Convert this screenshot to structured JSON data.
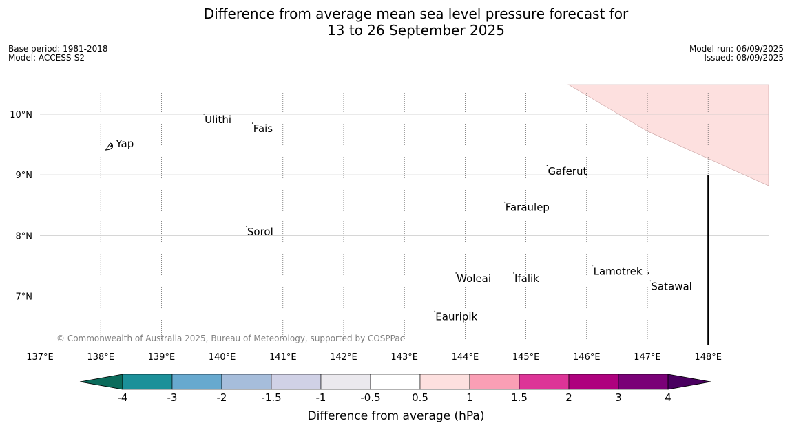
{
  "title": {
    "line1": "Difference from average mean sea level pressure forecast for",
    "line2": "13 to 26 September 2025"
  },
  "meta_left": {
    "base_period": "Base period: 1981-2018",
    "model": "Model: ACCESS-S2"
  },
  "meta_right": {
    "model_run": "Model run: 06/09/2025",
    "issued": "Issued: 08/09/2025"
  },
  "map": {
    "lon_range": [
      137.0,
      148.9
    ],
    "lat_range": [
      6.3,
      10.5
    ],
    "lon_ticks": [
      {
        "value": 137,
        "label": "137°E"
      },
      {
        "value": 138,
        "label": "138°E"
      },
      {
        "value": 139,
        "label": "139°E"
      },
      {
        "value": 140,
        "label": "140°E"
      },
      {
        "value": 141,
        "label": "141°E"
      },
      {
        "value": 142,
        "label": "142°E"
      },
      {
        "value": 143,
        "label": "143°E"
      },
      {
        "value": 144,
        "label": "144°E"
      },
      {
        "value": 145,
        "label": "145°E"
      },
      {
        "value": 146,
        "label": "146°E"
      },
      {
        "value": 147,
        "label": "147°E"
      },
      {
        "value": 148,
        "label": "148°E"
      }
    ],
    "lat_ticks": [
      {
        "value": 10,
        "label": "10°N"
      },
      {
        "value": 9,
        "label": "9°N"
      },
      {
        "value": 8,
        "label": "8°N"
      },
      {
        "value": 7,
        "label": "7°N"
      }
    ],
    "places": [
      {
        "name": "Yap",
        "lon": 138.15,
        "lat": 9.5
      },
      {
        "name": "Ulithi",
        "lon": 139.7,
        "lat": 9.9
      },
      {
        "name": "Fais",
        "lon": 140.5,
        "lat": 9.75
      },
      {
        "name": "Gaferut",
        "lon": 145.35,
        "lat": 9.05
      },
      {
        "name": "Faraulep",
        "lon": 144.65,
        "lat": 8.45
      },
      {
        "name": "Sorol",
        "lon": 140.4,
        "lat": 8.05
      },
      {
        "name": "Lamotrek",
        "lon": 146.1,
        "lat": 7.4
      },
      {
        "name": "Woleai",
        "lon": 143.85,
        "lat": 7.28
      },
      {
        "name": "Ifalik",
        "lon": 144.8,
        "lat": 7.28
      },
      {
        "name": "Satawal",
        "lon": 147.05,
        "lat": 7.15
      },
      {
        "name": "Eauripik",
        "lon": 143.5,
        "lat": 6.65
      }
    ],
    "anomaly_region": {
      "category": "0.5 to 1",
      "color": "#fde0df"
    },
    "copyright": "© Commonwealth of Australia 2025, Bureau of Meteorology, supported by COSPPac"
  },
  "colorbar": {
    "label": "Difference from average (hPa)",
    "ticks": [
      "-4",
      "-3",
      "-2",
      "-1.5",
      "-1",
      "-0.5",
      "0.5",
      "1",
      "1.5",
      "2",
      "3",
      "4"
    ],
    "under_color": "#0b6b5b",
    "over_color": "#4a0060",
    "colors": [
      "#1c9099",
      "#67a9cf",
      "#a6bddb",
      "#d0d1e6",
      "#ebe9ee",
      "#ffffff",
      "#fde0df",
      "#fa9fb5",
      "#dd3497",
      "#ae017e",
      "#7a0177"
    ]
  }
}
